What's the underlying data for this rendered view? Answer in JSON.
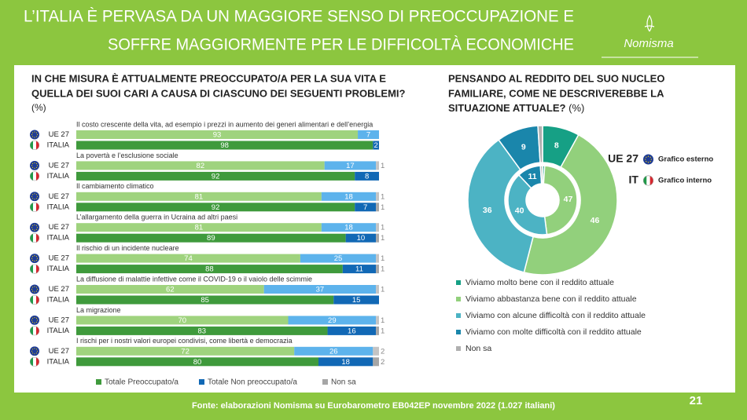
{
  "header": {
    "title": [
      "L’ITALIA È PERVASA DA UN MAGGIORE SENSO DI PREOCCUPAZIONE E",
      "SOFFRE MAGGIORMENTE PER LE DIFFICOLTÀ ECONOMICHE"
    ],
    "logo": "Nomisma"
  },
  "chart_data": [
    {
      "type": "bar",
      "orientation": "horizontal",
      "stacked": true,
      "title": [
        "IN CHE MISURA È ATTUALMENTE PREOCCUPATO/A PER LA SUA VITA E",
        "QUELLA DEI SUOI CARI A CAUSA DI CIASCUNO DEI SEGUENTI PROBLEMI?"
      ],
      "subtitle": "(%)",
      "categories": [
        "Il costo crescente della vita, ad esempio i prezzi in aumento dei generi alimentari e dell’energia",
        "La povertà e l’esclusione sociale",
        "Il cambiamento climatico",
        "L’allargamento della guerra in Ucraina ad altri paesi",
        "Il rischio di un incidente nucleare",
        "La diffusione di malattie infettive come il COVID-19 o il vaiolo delle scimmie",
        "La migrazione",
        "I rischi per i nostri valori europei condivisi, come libertà e democrazia"
      ],
      "groups": [
        "UE 27",
        "ITALIA"
      ],
      "xlim": [
        0,
        100
      ],
      "series": [
        {
          "name": "Totale Preoccupato/a",
          "color": [
            "#9fd37e",
            "#3f9a3c"
          ],
          "values": [
            [
              93,
              98
            ],
            [
              82,
              92
            ],
            [
              81,
              92
            ],
            [
              81,
              89
            ],
            [
              74,
              88
            ],
            [
              62,
              85
            ],
            [
              70,
              83
            ],
            [
              72,
              80
            ]
          ]
        },
        {
          "name": "Totale Non preoccupato/a",
          "color": [
            "#5db3ec",
            "#1168b5"
          ],
          "values": [
            [
              7,
              2
            ],
            [
              17,
              8
            ],
            [
              18,
              7
            ],
            [
              18,
              10
            ],
            [
              25,
              11
            ],
            [
              37,
              15
            ],
            [
              29,
              16
            ],
            [
              26,
              18
            ]
          ]
        },
        {
          "name": "Non sa",
          "color": [
            "#c4c4c4",
            "#a6a6a6"
          ],
          "values": [
            [
              null,
              null
            ],
            [
              1,
              null
            ],
            [
              1,
              1
            ],
            [
              1,
              1
            ],
            [
              1,
              1
            ],
            [
              1,
              null
            ],
            [
              1,
              1
            ],
            [
              2,
              2
            ]
          ]
        }
      ]
    },
    {
      "type": "pie",
      "donut": true,
      "title": [
        "PENSANDO AL REDDITO DEL SUO NUCLEO",
        "FAMILIARE, COME NE DESCRIVEREBBE LA",
        "SITUAZIONE ATTUALE?"
      ],
      "subtitle": "(%)",
      "categories": [
        "Viviamo molto bene con il reddito attuale",
        "Viviamo abbastanza bene con il reddito attuale",
        "Viviamo con alcune difficoltà con il reddito attuale",
        "Viviamo con molte difficoltà con il reddito attuale",
        "Non sa"
      ],
      "colors": [
        "#16a085",
        "#92d07c",
        "#4cb3c4",
        "#1a86ab",
        "#b0b0b0"
      ],
      "rings": [
        {
          "name": "UE 27",
          "label": "Grafico esterno",
          "values": [
            8,
            46,
            36,
            9,
            1
          ]
        },
        {
          "name": "IT",
          "label": "Grafico interno",
          "values": [
            1,
            47,
            40,
            11,
            1
          ]
        }
      ]
    }
  ],
  "footer": {
    "source": "Fonte: elaborazioni Nomisma su Eurobarometro EB042EP novembre 2022 (1.027 italiani)",
    "page": "21"
  }
}
